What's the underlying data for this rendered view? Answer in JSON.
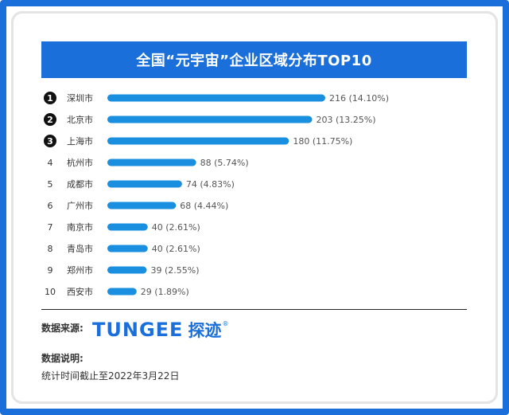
{
  "title": "全国“元宇宙”企业区域分布TOP10",
  "colors": {
    "frame": "#1a6fdb",
    "bar": "#1a8fe0",
    "title_bg": "#1a6fdb",
    "rank_badge": "#111111"
  },
  "chart_data": {
    "type": "bar",
    "orientation": "horizontal",
    "ranks": [
      "1",
      "2",
      "3",
      "4",
      "5",
      "6",
      "7",
      "8",
      "9",
      "10"
    ],
    "categories": [
      "深圳市",
      "北京市",
      "上海市",
      "杭州市",
      "成都市",
      "广州市",
      "南京市",
      "青岛市",
      "郑州市",
      "西安市"
    ],
    "values": [
      216,
      203,
      180,
      88,
      74,
      68,
      40,
      40,
      39,
      29
    ],
    "value_labels": [
      "216 (14.10%)",
      "203 (13.25%)",
      "180 (11.75%)",
      "88 (5.74%)",
      "74 (4.83%)",
      "68 (4.44%)",
      "40 (2.61%)",
      "40 (2.61%)",
      "39 (2.55%)",
      "29 (1.89%)"
    ],
    "percentages": [
      14.1,
      13.25,
      11.75,
      5.74,
      4.83,
      4.44,
      2.61,
      2.61,
      2.55,
      1.89
    ],
    "highlighted_ranks": [
      1,
      2,
      3
    ],
    "grid": false,
    "legend": "none"
  },
  "footer": {
    "source_label": "数据来源:",
    "brand_en": "TUNGEE",
    "brand_cn": "探迹",
    "brand_mark": "®",
    "note_label": "数据说明:",
    "note_text": "统计时间截止至2022年3月22日"
  }
}
